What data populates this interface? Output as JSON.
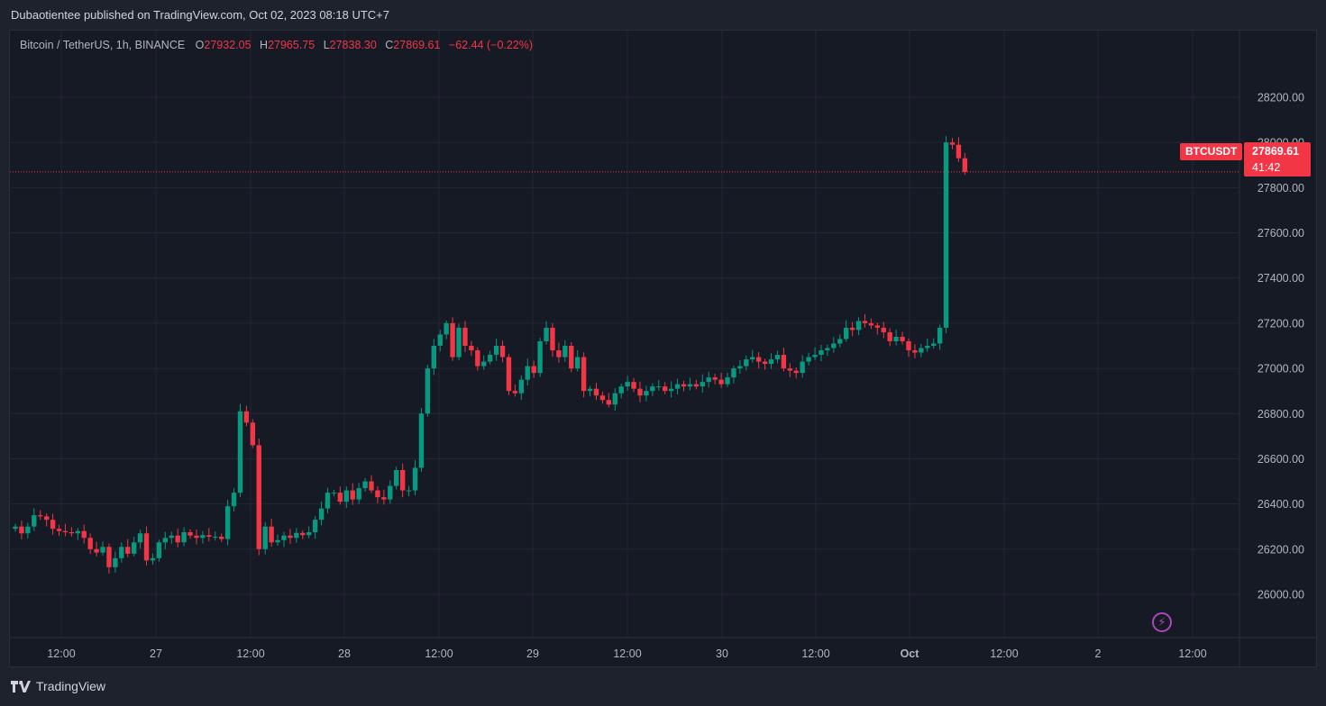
{
  "header": {
    "published": "Dubaotientee published on TradingView.com, Oct 02, 2023 08:18 UTC+7"
  },
  "legend": {
    "symbol": "Bitcoin / TetherUS, 1h, BINANCE",
    "o_label": "O",
    "o": "27932.05",
    "h_label": "H",
    "h": "27965.75",
    "l_label": "L",
    "l": "27838.30",
    "c_label": "C",
    "c": "27869.61",
    "change": "−62.44 (−0.22%)"
  },
  "price_tag": {
    "symbol": "BTCUSDT",
    "price": "27869.61",
    "countdown": "41:42"
  },
  "footer": {
    "brand": "TradingView"
  },
  "colors": {
    "up": "#089981",
    "down": "#f23645",
    "grid": "#242733",
    "bg": "#161a25",
    "text": "#b2b5be"
  },
  "chart_data": {
    "type": "candlestick",
    "y_ticks": [
      26000,
      26200,
      26400,
      26600,
      26800,
      27000,
      27200,
      27400,
      27600,
      27800,
      28000,
      28200
    ],
    "x_ticks": [
      "12:00",
      "27",
      "12:00",
      "28",
      "12:00",
      "29",
      "12:00",
      "30",
      "12:00",
      "Oct",
      "12:00",
      "2",
      "12:00"
    ],
    "last_price": 27869.61,
    "closes": [
      26300,
      26270,
      26300,
      26350,
      26345,
      26330,
      26290,
      26280,
      26275,
      26270,
      26280,
      26250,
      26200,
      26185,
      26210,
      26120,
      26160,
      26210,
      26180,
      26230,
      26270,
      26150,
      26160,
      26230,
      26250,
      26260,
      26230,
      26275,
      26260,
      26250,
      26262,
      26255,
      26255,
      26245,
      26390,
      26450,
      26810,
      26760,
      26660,
      26200,
      26300,
      26230,
      26240,
      26260,
      26250,
      26272,
      26262,
      26275,
      26330,
      26380,
      26450,
      26450,
      26410,
      26460,
      26420,
      26470,
      26500,
      26460,
      26430,
      26420,
      26480,
      26550,
      26460,
      26460,
      26560,
      26800,
      27000,
      27100,
      27150,
      27200,
      27050,
      27180,
      27100,
      27080,
      27010,
      27030,
      27060,
      27100,
      27050,
      26900,
      26890,
      26950,
      27010,
      26980,
      27120,
      27180,
      27080,
      27050,
      27100,
      27000,
      27050,
      26900,
      26910,
      26880,
      26860,
      26840,
      26890,
      26920,
      26940,
      26910,
      26880,
      26900,
      26920,
      26920,
      26900,
      26910,
      26930,
      26920,
      26930,
      26920,
      26940,
      26960,
      26950,
      26930,
      26960,
      27000,
      27010,
      27040,
      27050,
      27030,
      27020,
      27040,
      27060,
      27000,
      26990,
      26980,
      27030,
      27050,
      27060,
      27080,
      27090,
      27110,
      27130,
      27180,
      27170,
      27210,
      27200,
      27190,
      27180,
      27160,
      27120,
      27140,
      27120,
      27080,
      27070,
      27090,
      27100,
      27110,
      27180,
      28000,
      27990,
      27930,
      27869
    ]
  }
}
